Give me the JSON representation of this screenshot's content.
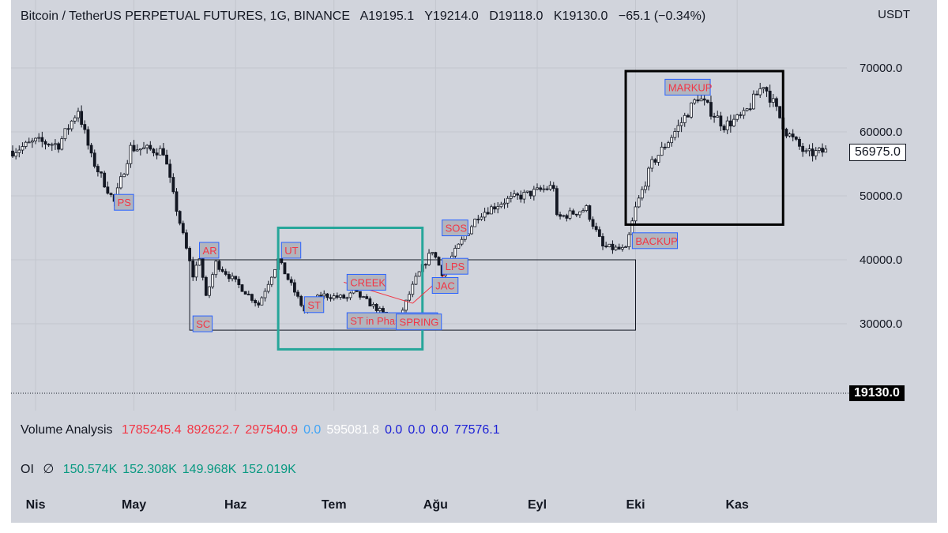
{
  "header": {
    "symbol": "Bitcoin / TetherUS PERPETUAL FUTURES, 1G, BINANCE",
    "open": "A19195.1",
    "high": "Y19214.0",
    "low": "D19118.0",
    "close": "K19130.0",
    "change": "−65.1 (−0.34%)"
  },
  "axis": {
    "unit": "USDT",
    "last_price_tag": "19130.0",
    "marker_price_tag": "56975.0"
  },
  "indicators": {
    "volume_analysis": {
      "name": "Volume Analysis",
      "values": [
        "1785245.4",
        "892622.7",
        "297540.9",
        "0.0",
        "595081.8",
        "0.0",
        "0.0",
        "0.0",
        "77576.1"
      ],
      "colors": [
        "#f23645",
        "#f23645",
        "#f23645",
        "#42a5f5",
        "#ffffff",
        "#1e22d6",
        "#1e22d6",
        "#1e22d6",
        "#1e22d6"
      ]
    },
    "oi": {
      "name": "OI",
      "symbol": "∅",
      "values": [
        "150.574K",
        "152.308K",
        "149.968K",
        "152.019K"
      ],
      "color": "#089981"
    }
  },
  "colors": {
    "up": "#ffffff",
    "down": "#131722",
    "annotation_text": "#f23645",
    "annotation_bg": "#b2b5be",
    "annotation_border": "#2962ff",
    "green_box": "#26a69a",
    "range_box": "#131722",
    "markup_box": "#000000",
    "trend_line": "#f23645"
  },
  "chart_data": {
    "type": "candlestick",
    "x_axis": [
      "Nis",
      "May",
      "Haz",
      "Tem",
      "Ağu",
      "Eyl",
      "Eki",
      "Kas"
    ],
    "y_ticks": [
      70000.0,
      60000.0,
      50000.0,
      40000.0,
      30000.0
    ],
    "ylim": [
      19000,
      76000
    ],
    "anchors": [
      {
        "date": "2021-03-25",
        "price": 57000
      },
      {
        "date": "2021-04-01",
        "price": 58500
      },
      {
        "date": "2021-04-08",
        "price": 58000
      },
      {
        "date": "2021-04-14",
        "price": 63500
      },
      {
        "date": "2021-04-18",
        "price": 56000
      },
      {
        "date": "2021-04-25",
        "price": 49000
      },
      {
        "date": "2021-04-30",
        "price": 57500
      },
      {
        "date": "2021-05-10",
        "price": 57000
      },
      {
        "date": "2021-05-13",
        "price": 50000
      },
      {
        "date": "2021-05-19",
        "price": 37500
      },
      {
        "date": "2021-05-21",
        "price": 40500
      },
      {
        "date": "2021-05-23",
        "price": 34000
      },
      {
        "date": "2021-05-26",
        "price": 39500
      },
      {
        "date": "2021-06-01",
        "price": 36500
      },
      {
        "date": "2021-06-08",
        "price": 33000
      },
      {
        "date": "2021-06-14",
        "price": 40000
      },
      {
        "date": "2021-06-22",
        "price": 32000
      },
      {
        "date": "2021-06-27",
        "price": 34500
      },
      {
        "date": "2021-07-05",
        "price": 34000
      },
      {
        "date": "2021-07-07",
        "price": 35000
      },
      {
        "date": "2021-07-15",
        "price": 32000
      },
      {
        "date": "2021-07-20",
        "price": 29800
      },
      {
        "date": "2021-07-26",
        "price": 37000
      },
      {
        "date": "2021-07-31",
        "price": 41500
      },
      {
        "date": "2021-08-03",
        "price": 38000
      },
      {
        "date": "2021-08-14",
        "price": 47000
      },
      {
        "date": "2021-08-22",
        "price": 49200
      },
      {
        "date": "2021-09-06",
        "price": 51500
      },
      {
        "date": "2021-09-07",
        "price": 46500
      },
      {
        "date": "2021-09-16",
        "price": 48000
      },
      {
        "date": "2021-09-21",
        "price": 42000
      },
      {
        "date": "2021-09-28",
        "price": 41500
      },
      {
        "date": "2021-10-01",
        "price": 48000
      },
      {
        "date": "2021-10-06",
        "price": 55000
      },
      {
        "date": "2021-10-15",
        "price": 61500
      },
      {
        "date": "2021-10-20",
        "price": 65500
      },
      {
        "date": "2021-10-28",
        "price": 61000
      },
      {
        "date": "2021-11-03",
        "price": 62500
      },
      {
        "date": "2021-11-09",
        "price": 67500
      },
      {
        "date": "2021-11-12",
        "price": 64500
      },
      {
        "date": "2021-11-16",
        "price": 60000
      },
      {
        "date": "2021-11-22",
        "price": 56500
      },
      {
        "date": "2021-11-28",
        "price": 57000
      }
    ],
    "annotations": [
      {
        "text": "PS",
        "date": "2021-04-25",
        "price": 48000
      },
      {
        "text": "SC",
        "date": "2021-05-19",
        "price": 29000
      },
      {
        "text": "AR",
        "date": "2021-05-21",
        "price": 40500
      },
      {
        "text": "ST",
        "date": "2021-06-22",
        "price": 32000
      },
      {
        "text": "UT",
        "date": "2021-06-15",
        "price": 40500
      },
      {
        "text": "ST in Phase B",
        "date": "2021-07-05",
        "price": 29500
      },
      {
        "text": "CREEK",
        "date": "2021-07-05",
        "price": 35500
      },
      {
        "text": "SPRING",
        "date": "2021-07-20",
        "price": 29300
      },
      {
        "text": "SOS",
        "date": "2021-08-03",
        "price": 44000
      },
      {
        "text": "JAC",
        "date": "2021-07-31",
        "price": 35000
      },
      {
        "text": "LPS",
        "date": "2021-08-03",
        "price": 38000
      },
      {
        "text": "MARKUP",
        "date": "2021-10-10",
        "price": 66000
      },
      {
        "text": "BACKUP",
        "date": "2021-09-30",
        "price": 42000
      }
    ]
  }
}
